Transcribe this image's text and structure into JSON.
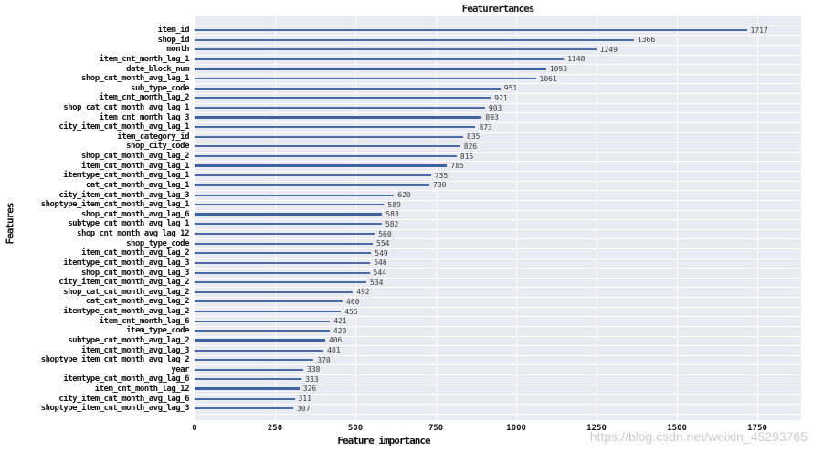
{
  "chart_data": {
    "type": "bar",
    "orientation": "horizontal",
    "title": "Featurertances",
    "xlabel": "Feature importance",
    "ylabel": "Features",
    "categories": [
      "item_id",
      "shop_id",
      "month",
      "item_cnt_month_lag_1",
      "date_block_num",
      "shop_cnt_month_avg_lag_1",
      "sub_type_code",
      "item_cnt_month_lag_2",
      "shop_cat_cnt_month_avg_lag_1",
      "item_cnt_month_lag_3",
      "city_item_cnt_month_avg_lag_1",
      "item_category_id",
      "shop_city_code",
      "shop_cnt_month_avg_lag_2",
      "item_cnt_month_avg_lag_1",
      "itemtype_cnt_month_avg_lag_1",
      "cat_cnt_month_avg_lag_1",
      "city_item_cnt_month_avg_lag_3",
      "shoptype_item_cnt_month_avg_lag_1",
      "shop_cnt_month_avg_lag_6",
      "subtype_cnt_month_avg_lag_1",
      "shop_cnt_month_avg_lag_12",
      "shop_type_code",
      "item_cnt_month_avg_lag_2",
      "itemtype_cnt_month_avg_lag_3",
      "shop_cnt_month_avg_lag_3",
      "city_item_cnt_month_avg_lag_2",
      "shop_cat_cnt_month_avg_lag_2",
      "cat_cnt_month_avg_lag_2",
      "itemtype_cnt_month_avg_lag_2",
      "item_cnt_month_lag_6",
      "item_type_code",
      "subtype_cnt_month_avg_lag_2",
      "item_cnt_month_avg_lag_3",
      "shoptype_item_cnt_month_avg_lag_2",
      "year",
      "itemtype_cnt_month_avg_lag_6",
      "item_cnt_month_lag_12",
      "city_item_cnt_month_avg_lag_6",
      "shoptype_item_cnt_month_avg_lag_3"
    ],
    "values": [
      1717,
      1366,
      1249,
      1148,
      1093,
      1061,
      951,
      921,
      903,
      893,
      873,
      835,
      826,
      815,
      785,
      735,
      730,
      620,
      589,
      583,
      582,
      560,
      554,
      549,
      546,
      544,
      534,
      492,
      460,
      455,
      421,
      420,
      406,
      401,
      370,
      338,
      333,
      326,
      311,
      307
    ],
    "value_labels_shown": true,
    "x_ticks": [
      0,
      250,
      500,
      750,
      1000,
      1250,
      1500,
      1750
    ],
    "xlim": [
      0,
      1886
    ],
    "grid": true,
    "legend": "none",
    "plot_background": "#eaeaf2",
    "grid_color": "#ffffff",
    "bar_color": "#4a6da8",
    "emphasized_bar_color": "#3e639e",
    "emphasized_row_indices": [
      4,
      9,
      14,
      19,
      32,
      37
    ]
  },
  "watermark": "https://blog.csdn.net/weixin_45293765"
}
